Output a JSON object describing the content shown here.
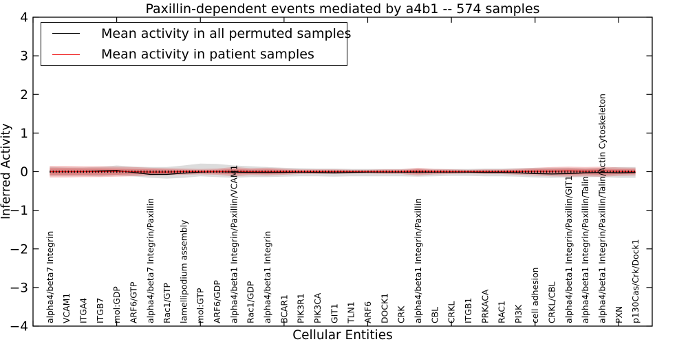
{
  "chart_data": {
    "type": "line",
    "title": "Paxillin-dependent events mediated by a4b1 -- 574 samples",
    "xlabel": "Cellular Entities",
    "ylabel": "Inferred Activity",
    "ylim": [
      -4,
      4
    ],
    "yticks": [
      -4,
      -3,
      -2,
      -1,
      0,
      1,
      2,
      3,
      4
    ],
    "x_tick_step": 5,
    "grid": false,
    "legend_position": "upper left",
    "zero_line": {
      "y": 0,
      "style": "dotted",
      "color": "#000000"
    },
    "categories": [
      "alpha4/beta7 Integrin",
      "VCAM1",
      "ITGA4",
      "ITGB7",
      "mol:GDP",
      "ARF6/GTP",
      "alpha4/beta7 Integrin/Paxillin",
      "Rac1/GTP",
      "lamellipodium assembly",
      "mol:GTP",
      "ARF6/GDP",
      "alpha4/beta1 Integrin/Paxillin/VCAM1",
      "Rac1/GDP",
      "alpha4/beta1 Integrin",
      "BCAR1",
      "PIK3R1",
      "PIK3CA",
      "GIT1",
      "TLN1",
      "ARF6",
      "DOCK1",
      "CRK",
      "alpha4/beta1 Integrin/Paxillin",
      "CBL",
      "CRKL",
      "ITGB1",
      "PRKACA",
      "RAC1",
      "PI3K",
      "cell adhesion",
      "CRKL/CBL",
      "alpha4/beta1 Integrin/Paxillin/GIT1",
      "alpha4/beta1 Integrin/Paxillin/Talin",
      "alpha4/beta1 Integrin/Paxillin/Talin/Actin Cytoskeleton",
      "PXN",
      "p130Cas/Crk/Dock1"
    ],
    "series": [
      {
        "name": "Mean activity in all permuted samples",
        "color": "#000000",
        "values": [
          0.0,
          0.0,
          0.0,
          0.02,
          0.03,
          -0.02,
          -0.07,
          -0.07,
          -0.04,
          -0.01,
          0.0,
          -0.01,
          -0.02,
          -0.02,
          -0.02,
          -0.01,
          -0.02,
          -0.03,
          -0.02,
          -0.01,
          -0.01,
          -0.01,
          -0.01,
          -0.01,
          -0.01,
          -0.01,
          -0.02,
          -0.02,
          -0.03,
          -0.05,
          -0.06,
          -0.05,
          -0.03,
          -0.02,
          -0.03,
          -0.02
        ]
      },
      {
        "name": "Mean activity in patient samples",
        "color": "#ee1111",
        "values": [
          0.0,
          0.0,
          0.0,
          0.0,
          0.01,
          0.0,
          -0.01,
          -0.01,
          0.0,
          0.0,
          0.0,
          0.01,
          0.0,
          0.0,
          0.0,
          0.0,
          0.0,
          0.0,
          0.0,
          0.0,
          0.0,
          0.0,
          0.01,
          0.0,
          0.0,
          0.0,
          0.0,
          0.0,
          0.0,
          0.01,
          0.01,
          0.02,
          0.01,
          0.02,
          0.01,
          0.0
        ]
      }
    ],
    "bands": [
      {
        "name": "permuted-samples-range",
        "color": "#9a9a9a",
        "opacity": 0.35,
        "upper": [
          0.12,
          0.11,
          0.11,
          0.12,
          0.16,
          0.13,
          0.12,
          0.12,
          0.16,
          0.21,
          0.2,
          0.16,
          0.14,
          0.12,
          0.1,
          0.09,
          0.08,
          0.08,
          0.07,
          0.07,
          0.07,
          0.07,
          0.08,
          0.07,
          0.07,
          0.07,
          0.08,
          0.08,
          0.09,
          0.1,
          0.1,
          0.1,
          0.09,
          0.1,
          0.12,
          0.12
        ],
        "lower": [
          -0.11,
          -0.11,
          -0.11,
          -0.12,
          -0.1,
          -0.12,
          -0.16,
          -0.18,
          -0.16,
          -0.12,
          -0.14,
          -0.16,
          -0.14,
          -0.14,
          -0.13,
          -0.12,
          -0.12,
          -0.13,
          -0.12,
          -0.12,
          -0.12,
          -0.12,
          -0.13,
          -0.12,
          -0.11,
          -0.11,
          -0.12,
          -0.12,
          -0.13,
          -0.15,
          -0.16,
          -0.15,
          -0.14,
          -0.14,
          -0.16,
          -0.16
        ]
      },
      {
        "name": "patient-samples-range-outer",
        "color": "#dd3333",
        "opacity": 0.27,
        "upper": [
          0.15,
          0.15,
          0.14,
          0.14,
          0.13,
          0.12,
          0.1,
          0.09,
          0.08,
          0.07,
          0.08,
          0.12,
          0.09,
          0.1,
          0.08,
          0.06,
          0.06,
          0.06,
          0.05,
          0.05,
          0.06,
          0.06,
          0.1,
          0.07,
          0.06,
          0.05,
          0.06,
          0.06,
          0.08,
          0.1,
          0.12,
          0.13,
          0.12,
          0.13,
          0.11,
          0.1
        ],
        "lower": [
          -0.15,
          -0.15,
          -0.14,
          -0.14,
          -0.13,
          -0.12,
          -0.1,
          -0.09,
          -0.08,
          -0.07,
          -0.08,
          -0.12,
          -0.09,
          -0.1,
          -0.08,
          -0.06,
          -0.06,
          -0.06,
          -0.05,
          -0.05,
          -0.06,
          -0.06,
          -0.1,
          -0.07,
          -0.06,
          -0.05,
          -0.06,
          -0.06,
          -0.08,
          -0.1,
          -0.12,
          -0.13,
          -0.12,
          -0.13,
          -0.11,
          -0.1
        ]
      },
      {
        "name": "patient-samples-range-inner",
        "color": "#dd3333",
        "opacity": 0.33,
        "upper": [
          0.09,
          0.09,
          0.085,
          0.085,
          0.08,
          0.07,
          0.06,
          0.055,
          0.05,
          0.04,
          0.05,
          0.07,
          0.055,
          0.06,
          0.05,
          0.035,
          0.035,
          0.035,
          0.03,
          0.03,
          0.035,
          0.035,
          0.06,
          0.04,
          0.035,
          0.03,
          0.035,
          0.035,
          0.05,
          0.06,
          0.07,
          0.08,
          0.07,
          0.08,
          0.065,
          0.06
        ],
        "lower": [
          -0.09,
          -0.09,
          -0.085,
          -0.085,
          -0.08,
          -0.07,
          -0.06,
          -0.055,
          -0.05,
          -0.04,
          -0.05,
          -0.07,
          -0.055,
          -0.06,
          -0.05,
          -0.035,
          -0.035,
          -0.035,
          -0.03,
          -0.03,
          -0.035,
          -0.035,
          -0.06,
          -0.04,
          -0.035,
          -0.03,
          -0.035,
          -0.035,
          -0.05,
          -0.06,
          -0.07,
          -0.08,
          -0.07,
          -0.08,
          -0.065,
          -0.06
        ]
      }
    ]
  }
}
